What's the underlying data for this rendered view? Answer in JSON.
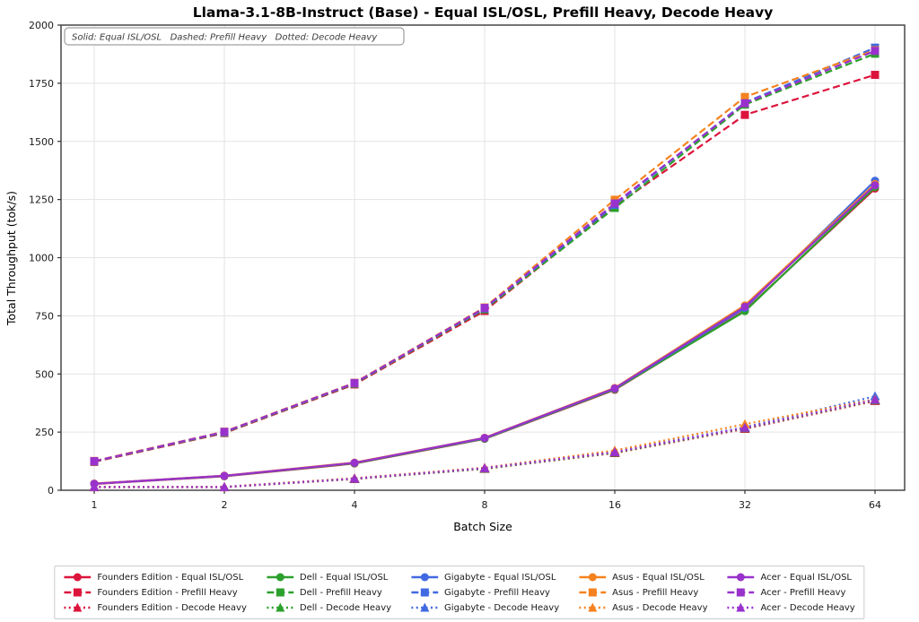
{
  "chart_data": {
    "type": "line",
    "title": "Llama-3.1-8B-Instruct (Base) - Equal ISL/OSL, Prefill Heavy, Decode Heavy",
    "xlabel": "Batch Size",
    "ylabel": "Total Throughput (tok/s)",
    "annotation": "Solid: Equal ISL/OSL   Dashed: Prefill Heavy   Dotted: Decode Heavy",
    "x": [
      1,
      2,
      4,
      8,
      16,
      32,
      64
    ],
    "x_scale": "log2",
    "ylim": [
      0,
      2000
    ],
    "yticks": [
      0,
      250,
      500,
      750,
      1000,
      1250,
      1500,
      1750,
      2000
    ],
    "grid": true,
    "legend_position": "bottom",
    "line_style_key": {
      "solid": "Equal ISL/OSL",
      "dashed": "Prefill Heavy",
      "dotted": "Decode Heavy"
    },
    "vendor_colors": {
      "Founders Edition": "#DC143C",
      "Dell": "#2CA02C",
      "Gigabyte": "#4169E1",
      "Asus": "#F5821F",
      "Acer": "#9932CC"
    },
    "series": [
      {
        "label": "Founders Edition - Equal ISL/OSL",
        "vendor": "Founders Edition",
        "workload": "Equal ISL/OSL",
        "color": "#DC143C",
        "linestyle": "solid",
        "marker": "circle",
        "values": [
          27,
          60,
          115,
          221,
          432,
          773,
          1297
        ]
      },
      {
        "label": "Founders Edition - Prefill Heavy",
        "vendor": "Founders Edition",
        "workload": "Prefill Heavy",
        "color": "#DC143C",
        "linestyle": "dashed",
        "marker": "square",
        "values": [
          122,
          246,
          455,
          771,
          1221,
          1614,
          1786
        ]
      },
      {
        "label": "Founders Edition - Decode Heavy",
        "vendor": "Founders Edition",
        "workload": "Decode Heavy",
        "color": "#DC143C",
        "linestyle": "dotted",
        "marker": "triangle",
        "values": [
          13,
          13,
          48,
          92,
          160,
          264,
          384
        ]
      },
      {
        "label": "Dell - Equal ISL/OSL",
        "vendor": "Dell",
        "workload": "Equal ISL/OSL",
        "color": "#2CA02C",
        "linestyle": "solid",
        "marker": "circle",
        "values": [
          28,
          61,
          116,
          222,
          434,
          770,
          1303
        ]
      },
      {
        "label": "Dell - Prefill Heavy",
        "vendor": "Dell",
        "workload": "Prefill Heavy",
        "color": "#2CA02C",
        "linestyle": "dashed",
        "marker": "square",
        "values": [
          124,
          248,
          458,
          778,
          1214,
          1658,
          1877
        ]
      },
      {
        "label": "Dell - Decode Heavy",
        "vendor": "Dell",
        "workload": "Decode Heavy",
        "color": "#2CA02C",
        "linestyle": "dotted",
        "marker": "triangle",
        "values": [
          14,
          14,
          49,
          93,
          162,
          267,
          387
        ]
      },
      {
        "label": "Gigabyte - Equal ISL/OSL",
        "vendor": "Gigabyte",
        "workload": "Equal ISL/OSL",
        "color": "#4169E1",
        "linestyle": "solid",
        "marker": "circle",
        "values": [
          28,
          62,
          118,
          224,
          437,
          784,
          1331
        ]
      },
      {
        "label": "Gigabyte - Prefill Heavy",
        "vendor": "Gigabyte",
        "workload": "Prefill Heavy",
        "color": "#4169E1",
        "linestyle": "dashed",
        "marker": "square",
        "values": [
          125,
          250,
          460,
          782,
          1227,
          1667,
          1903
        ]
      },
      {
        "label": "Gigabyte - Decode Heavy",
        "vendor": "Gigabyte",
        "workload": "Decode Heavy",
        "color": "#4169E1",
        "linestyle": "dotted",
        "marker": "triangle",
        "values": [
          15,
          15,
          51,
          96,
          166,
          271,
          404
        ]
      },
      {
        "label": "Asus - Equal ISL/OSL",
        "vendor": "Asus",
        "workload": "Equal ISL/OSL",
        "color": "#F5821F",
        "linestyle": "solid",
        "marker": "circle",
        "values": [
          29,
          63,
          119,
          226,
          440,
          795,
          1317
        ]
      },
      {
        "label": "Asus - Prefill Heavy",
        "vendor": "Asus",
        "workload": "Prefill Heavy",
        "color": "#F5821F",
        "linestyle": "dashed",
        "marker": "square",
        "values": [
          126,
          252,
          462,
          786,
          1249,
          1691,
          1892
        ]
      },
      {
        "label": "Asus - Decode Heavy",
        "vendor": "Asus",
        "workload": "Decode Heavy",
        "color": "#F5821F",
        "linestyle": "dotted",
        "marker": "triangle",
        "values": [
          15,
          15,
          52,
          97,
          171,
          284,
          391
        ]
      },
      {
        "label": "Acer - Equal ISL/OSL",
        "vendor": "Acer",
        "workload": "Equal ISL/OSL",
        "color": "#9932CC",
        "linestyle": "solid",
        "marker": "circle",
        "values": [
          28,
          62,
          118,
          225,
          438,
          789,
          1311
        ]
      },
      {
        "label": "Acer - Prefill Heavy",
        "vendor": "Acer",
        "workload": "Prefill Heavy",
        "color": "#9932CC",
        "linestyle": "dashed",
        "marker": "square",
        "values": [
          125,
          251,
          461,
          784,
          1233,
          1664,
          1889
        ]
      },
      {
        "label": "Acer - Decode Heavy",
        "vendor": "Acer",
        "workload": "Decode Heavy",
        "color": "#9932CC",
        "linestyle": "dotted",
        "marker": "triangle",
        "values": [
          14,
          14,
          50,
          95,
          164,
          269,
          389
        ]
      }
    ]
  }
}
